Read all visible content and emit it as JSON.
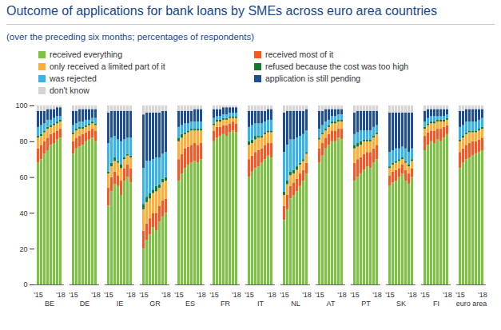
{
  "chart_data": {
    "type": "bar",
    "title": "Outcome of applications for bank loans by SMEs across euro area countries",
    "subtitle": "(over the preceding six months; percentages of respondents)",
    "stacked": true,
    "legend": "top",
    "grid": false,
    "ylim": [
      0,
      100
    ],
    "yticks": [
      0,
      20,
      40,
      60,
      80,
      100
    ],
    "groups": [
      "BE",
      "DE",
      "IE",
      "GR",
      "ES",
      "FR",
      "IT",
      "NL",
      "AT",
      "PT",
      "SK",
      "FI",
      "euro area"
    ],
    "categories": [
      "'15",
      null,
      null,
      null,
      null,
      null,
      null,
      "'18"
    ],
    "series": [
      {
        "name": "received everything",
        "color": "#7dc242",
        "values": [
          [
            68,
            70,
            73,
            75,
            78,
            79,
            81,
            82
          ],
          [
            73,
            76,
            77,
            78,
            80,
            81,
            82,
            80
          ],
          [
            44,
            52,
            56,
            55,
            50,
            58,
            60,
            57
          ],
          [
            20,
            25,
            28,
            32,
            30,
            35,
            38,
            40
          ],
          [
            58,
            62,
            65,
            67,
            68,
            69,
            68,
            70
          ],
          [
            80,
            82,
            83,
            84,
            83,
            85,
            86,
            85
          ],
          [
            60,
            63,
            65,
            66,
            68,
            70,
            72,
            71
          ],
          [
            36,
            42,
            48,
            50,
            52,
            55,
            58,
            62
          ],
          [
            68,
            72,
            76,
            78,
            80,
            80,
            82,
            81
          ],
          [
            58,
            60,
            62,
            64,
            66,
            65,
            68,
            70
          ],
          [
            55,
            57,
            58,
            60,
            62,
            58,
            56,
            60
          ],
          [
            75,
            78,
            80,
            79,
            81,
            80,
            82,
            84
          ],
          [
            65,
            68,
            70,
            71,
            72,
            73,
            74,
            75
          ]
        ]
      },
      {
        "name": "received most of it",
        "color": "#f15a24",
        "values": [
          [
            8,
            8,
            7,
            7,
            6,
            6,
            5,
            5
          ],
          [
            7,
            6,
            6,
            6,
            5,
            5,
            5,
            6
          ],
          [
            10,
            8,
            7,
            6,
            8,
            7,
            7,
            8
          ],
          [
            10,
            9,
            9,
            8,
            10,
            9,
            9,
            8
          ],
          [
            12,
            11,
            11,
            10,
            10,
            10,
            10,
            9
          ],
          [
            6,
            6,
            5,
            5,
            6,
            5,
            5,
            5
          ],
          [
            10,
            9,
            9,
            9,
            8,
            8,
            7,
            8
          ],
          [
            8,
            8,
            7,
            7,
            7,
            7,
            6,
            6
          ],
          [
            8,
            7,
            6,
            6,
            6,
            6,
            5,
            6
          ],
          [
            10,
            10,
            9,
            9,
            8,
            9,
            8,
            8
          ],
          [
            6,
            6,
            6,
            5,
            5,
            6,
            6,
            5
          ],
          [
            8,
            7,
            6,
            7,
            6,
            7,
            6,
            5
          ],
          [
            9,
            8,
            8,
            8,
            8,
            7,
            7,
            7
          ]
        ]
      },
      {
        "name": "only received a limited part of it",
        "color": "#fbb034",
        "values": [
          [
            6,
            5,
            5,
            5,
            4,
            4,
            4,
            4
          ],
          [
            4,
            4,
            4,
            3,
            3,
            3,
            3,
            3
          ],
          [
            8,
            6,
            6,
            7,
            7,
            5,
            5,
            6
          ],
          [
            12,
            12,
            11,
            11,
            12,
            10,
            10,
            10
          ],
          [
            10,
            9,
            8,
            8,
            8,
            7,
            8,
            7
          ],
          [
            3,
            3,
            3,
            3,
            3,
            3,
            2,
            3
          ],
          [
            8,
            7,
            7,
            7,
            6,
            6,
            6,
            6
          ],
          [
            6,
            6,
            6,
            5,
            5,
            5,
            5,
            5
          ],
          [
            5,
            5,
            4,
            4,
            4,
            4,
            4,
            4
          ],
          [
            8,
            7,
            7,
            7,
            6,
            6,
            6,
            6
          ],
          [
            4,
            4,
            4,
            4,
            3,
            4,
            4,
            4
          ],
          [
            4,
            4,
            4,
            4,
            4,
            4,
            3,
            3
          ],
          [
            6,
            6,
            6,
            6,
            5,
            5,
            5,
            5
          ]
        ]
      },
      {
        "name": "refused because the cost was too high",
        "color": "#16792f",
        "values": [
          [
            1,
            1,
            1,
            1,
            1,
            1,
            1,
            1
          ],
          [
            1,
            1,
            1,
            1,
            1,
            1,
            1,
            1
          ],
          [
            1,
            2,
            2,
            1,
            2,
            1,
            1,
            1
          ],
          [
            3,
            3,
            3,
            2,
            3,
            2,
            2,
            2
          ],
          [
            2,
            2,
            1,
            1,
            1,
            1,
            1,
            1
          ],
          [
            1,
            1,
            1,
            1,
            1,
            1,
            1,
            1
          ],
          [
            2,
            2,
            2,
            1,
            1,
            1,
            1,
            1
          ],
          [
            2,
            2,
            2,
            2,
            2,
            1,
            1,
            1
          ],
          [
            1,
            1,
            1,
            1,
            1,
            1,
            1,
            1
          ],
          [
            2,
            2,
            2,
            1,
            1,
            1,
            1,
            1
          ],
          [
            1,
            1,
            1,
            1,
            1,
            1,
            1,
            1
          ],
          [
            1,
            1,
            1,
            1,
            1,
            1,
            1,
            1
          ],
          [
            1,
            1,
            1,
            1,
            1,
            1,
            1,
            1
          ]
        ]
      },
      {
        "name": "was rejected",
        "color": "#36b4e5",
        "values": [
          [
            5,
            5,
            4,
            4,
            3,
            3,
            3,
            2
          ],
          [
            4,
            3,
            3,
            3,
            3,
            2,
            2,
            3
          ],
          [
            16,
            14,
            12,
            12,
            13,
            10,
            9,
            10
          ],
          [
            20,
            20,
            18,
            17,
            16,
            15,
            14,
            14
          ],
          [
            6,
            5,
            5,
            4,
            4,
            4,
            4,
            4
          ],
          [
            3,
            2,
            2,
            2,
            2,
            2,
            2,
            2
          ],
          [
            8,
            8,
            7,
            7,
            7,
            6,
            6,
            6
          ],
          [
            22,
            20,
            18,
            17,
            16,
            15,
            14,
            12
          ],
          [
            5,
            4,
            4,
            3,
            3,
            3,
            3,
            3
          ],
          [
            6,
            6,
            6,
            5,
            5,
            5,
            5,
            4
          ],
          [
            8,
            7,
            7,
            6,
            6,
            7,
            7,
            6
          ],
          [
            3,
            3,
            3,
            3,
            2,
            2,
            2,
            2
          ],
          [
            7,
            6,
            6,
            5,
            5,
            5,
            5,
            5
          ]
        ]
      },
      {
        "name": "application is still pending",
        "color": "#1f4e8c",
        "values": [
          [
            9,
            8,
            7,
            6,
            6,
            5,
            5,
            5
          ],
          [
            8,
            7,
            7,
            7,
            6,
            6,
            5,
            5
          ],
          [
            17,
            15,
            14,
            16,
            17,
            16,
            15,
            15
          ],
          [
            30,
            27,
            27,
            26,
            25,
            25,
            24,
            23
          ],
          [
            9,
            8,
            7,
            7,
            6,
            7,
            7,
            7
          ],
          [
            5,
            4,
            4,
            4,
            4,
            3,
            3,
            3
          ],
          [
            9,
            8,
            7,
            7,
            7,
            6,
            6,
            6
          ],
          [
            22,
            19,
            16,
            16,
            15,
            14,
            13,
            12
          ],
          [
            10,
            8,
            7,
            6,
            4,
            4,
            3,
            3
          ],
          [
            12,
            12,
            11,
            11,
            11,
            11,
            9,
            8
          ],
          [
            22,
            21,
            20,
            20,
            19,
            20,
            22,
            20
          ],
          [
            6,
            5,
            4,
            4,
            4,
            4,
            4,
            3
          ],
          [
            9,
            8,
            7,
            7,
            7,
            7,
            6,
            5
          ]
        ]
      },
      {
        "name": "don't know",
        "color": "#d4d4d4",
        "values": [
          [
            3,
            3,
            3,
            2,
            2,
            2,
            1,
            1
          ],
          [
            3,
            3,
            2,
            2,
            2,
            2,
            2,
            2
          ],
          [
            4,
            3,
            3,
            3,
            3,
            3,
            3,
            3
          ],
          [
            5,
            4,
            4,
            4,
            4,
            4,
            3,
            3
          ],
          [
            3,
            3,
            3,
            3,
            3,
            2,
            2,
            2
          ],
          [
            2,
            2,
            2,
            1,
            1,
            1,
            1,
            1
          ],
          [
            3,
            3,
            3,
            3,
            3,
            3,
            2,
            2
          ],
          [
            4,
            3,
            3,
            3,
            3,
            3,
            3,
            2
          ],
          [
            3,
            3,
            2,
            2,
            2,
            2,
            2,
            2
          ],
          [
            4,
            3,
            3,
            3,
            3,
            3,
            3,
            3
          ],
          [
            4,
            4,
            4,
            4,
            4,
            4,
            4,
            4
          ],
          [
            3,
            2,
            2,
            2,
            2,
            2,
            2,
            2
          ],
          [
            3,
            3,
            2,
            2,
            2,
            2,
            2,
            2
          ]
        ]
      }
    ]
  }
}
